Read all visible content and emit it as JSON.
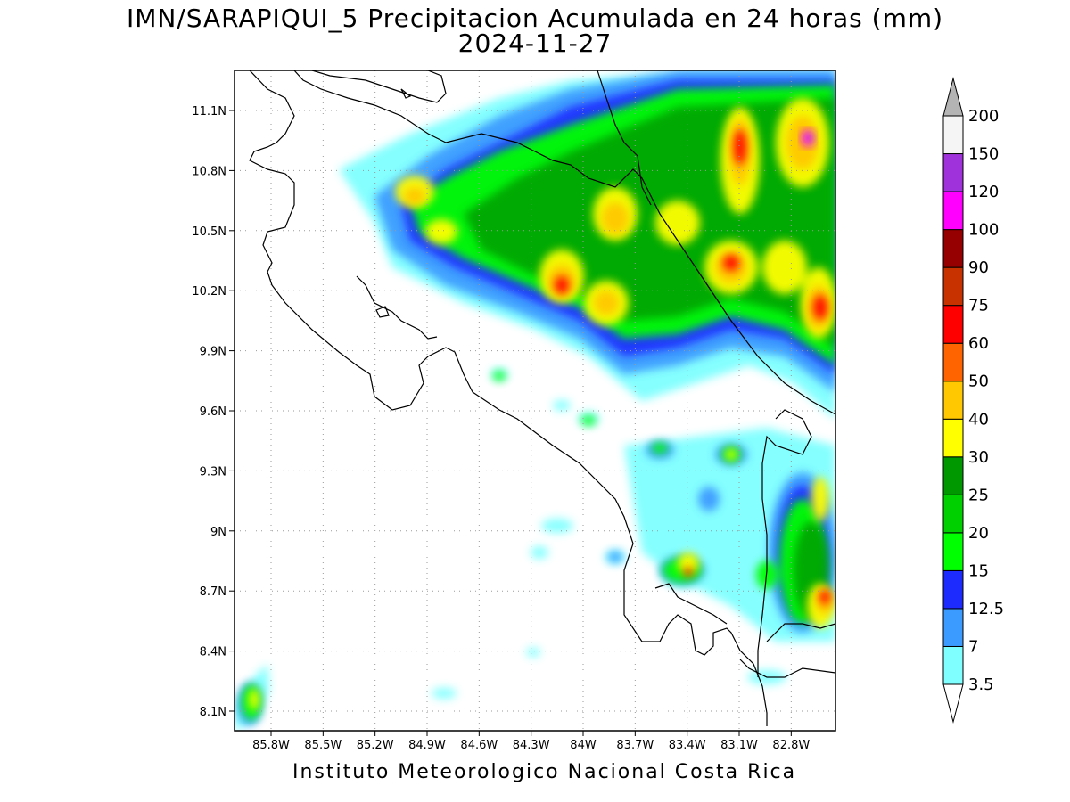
{
  "title": {
    "line1": "IMN/SARAPIQUI_5 Precipitacion Acumulada en 24 horas (mm)",
    "line2": "2024-11-27"
  },
  "footer": "Instituto Meteorologico Nacional Costa Rica",
  "map": {
    "lat_labels": [
      "11.1N",
      "10.8N",
      "10.5N",
      "10.2N",
      "9.9N",
      "9.6N",
      "9.3N",
      "9N",
      "8.7N",
      "8.4N",
      "8.1N"
    ],
    "lon_labels": [
      "85.8W",
      "85.5W",
      "85.2W",
      "84.9W",
      "84.6W",
      "84.3W",
      "84W",
      "83.7W",
      "83.4W",
      "83.1W",
      "82.8W"
    ],
    "lat_values": [
      11.1,
      10.8,
      10.5,
      10.2,
      9.9,
      9.6,
      9.3,
      9.0,
      8.7,
      8.4,
      8.1
    ],
    "lon_values": [
      -85.8,
      -85.5,
      -85.2,
      -84.9,
      -84.6,
      -84.3,
      -84.0,
      -83.7,
      -83.4,
      -83.1,
      -82.8
    ],
    "grid": "dotted"
  },
  "colorbar": {
    "unit": "mm",
    "levels": [
      "3.5",
      "7",
      "12.5",
      "15",
      "20",
      "25",
      "30",
      "40",
      "50",
      "60",
      "75",
      "90",
      "100",
      "120",
      "150",
      "200"
    ],
    "colors": [
      "#7fffff",
      "#3c9bff",
      "#1e2bff",
      "#00ff00",
      "#00d000",
      "#009800",
      "#ffff00",
      "#ffc800",
      "#ff6400",
      "#ff0000",
      "#c83200",
      "#960000",
      "#ff00ff",
      "#a032dc",
      "#f5f5f5",
      "#b4b4b4"
    ]
  }
}
